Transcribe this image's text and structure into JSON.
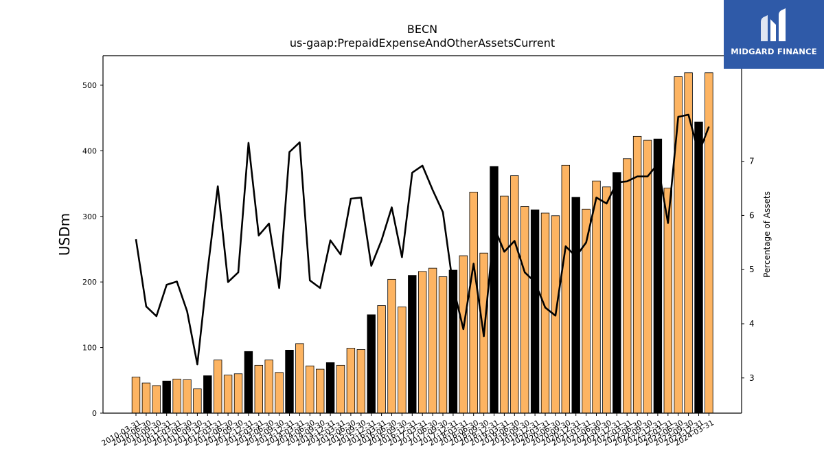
{
  "logo": {
    "brand": "MIDGARD FINANCE",
    "icon": "midgard-finance-logo-icon",
    "background": "#2f5aa8"
  },
  "chart_data": {
    "type": "bar",
    "title": "BECN",
    "subtitle": "us-gaap:PrepaidExpenseAndOtherAssetsCurrent",
    "ylabel": "USDm",
    "y2label": "Percentage of Assets",
    "ylim": [
      0,
      545
    ],
    "y2lim": [
      2.35,
      8.95
    ],
    "yticks": [
      0,
      100,
      200,
      300,
      400,
      500
    ],
    "y2ticks": [
      3,
      4,
      5,
      6,
      7
    ],
    "grid": false,
    "legend": "none",
    "colors": {
      "bar": "#fdb462",
      "bar_fiscal_q4": "#000000",
      "line": "#000000"
    },
    "categories": [
      "2010-03-31",
      "2010-06-30",
      "2010-09-30",
      "2010-12-31",
      "2011-03-31",
      "2011-06-30",
      "2011-09-30",
      "2011-12-31",
      "2012-03-31",
      "2012-06-30",
      "2012-09-30",
      "2012-12-31",
      "2013-03-31",
      "2013-06-30",
      "2013-09-30",
      "2013-12-31",
      "2014-03-31",
      "2014-06-30",
      "2014-09-30",
      "2014-12-31",
      "2015-03-31",
      "2015-06-30",
      "2015-09-30",
      "2015-12-31",
      "2016-03-31",
      "2016-06-30",
      "2016-09-30",
      "2016-12-31",
      "2017-03-31",
      "2017-06-30",
      "2017-09-30",
      "2017-12-31",
      "2018-03-31",
      "2018-06-30",
      "2018-09-30",
      "2018-12-31",
      "2019-03-31",
      "2019-06-30",
      "2019-09-30",
      "2019-12-31",
      "2020-03-31",
      "2020-06-30",
      "2020-09-30",
      "2020-12-31",
      "2021-03-31",
      "2021-06-30",
      "2021-09-30",
      "2021-12-31",
      "2022-03-31",
      "2022-06-30",
      "2022-09-30",
      "2022-12-31",
      "2023-03-31",
      "2023-06-30",
      "2023-09-30",
      "2023-12-31",
      "2024-03-31"
    ],
    "values": [
      55,
      46,
      42,
      49,
      52,
      51,
      37,
      57,
      81,
      58,
      60,
      94,
      73,
      81,
      62,
      96,
      106,
      72,
      67,
      77,
      73,
      99,
      97,
      150,
      164,
      204,
      162,
      210,
      216,
      221,
      208,
      218,
      240,
      337,
      244,
      376,
      331,
      362,
      315,
      310,
      305,
      301,
      378,
      329,
      311,
      354,
      345,
      367,
      388,
      422,
      416,
      418,
      343,
      513,
      519,
      444,
      519
    ],
    "fiscal_q4": [
      false,
      false,
      false,
      true,
      false,
      false,
      false,
      true,
      false,
      false,
      false,
      true,
      false,
      false,
      false,
      true,
      false,
      false,
      false,
      true,
      false,
      false,
      false,
      true,
      false,
      false,
      false,
      true,
      false,
      false,
      false,
      true,
      false,
      false,
      false,
      true,
      false,
      false,
      false,
      true,
      false,
      false,
      false,
      true,
      false,
      false,
      false,
      true,
      false,
      false,
      false,
      true,
      false,
      false,
      false,
      true,
      false
    ],
    "line_values": [
      5.56,
      4.32,
      4.14,
      4.72,
      4.78,
      4.23,
      3.25,
      4.98,
      6.54,
      4.77,
      4.95,
      7.34,
      5.63,
      5.85,
      4.66,
      7.17,
      7.35,
      4.8,
      4.66,
      5.54,
      5.28,
      6.31,
      6.33,
      5.07,
      5.54,
      6.15,
      5.23,
      6.79,
      6.92,
      6.47,
      6.06,
      4.69,
      3.9,
      5.11,
      3.77,
      5.79,
      5.33,
      5.53,
      4.95,
      4.77,
      4.3,
      4.15,
      5.43,
      5.24,
      5.5,
      6.33,
      6.22,
      6.61,
      6.63,
      6.72,
      6.72,
      6.95,
      5.86,
      7.82,
      7.86,
      7.15,
      7.64
    ]
  }
}
